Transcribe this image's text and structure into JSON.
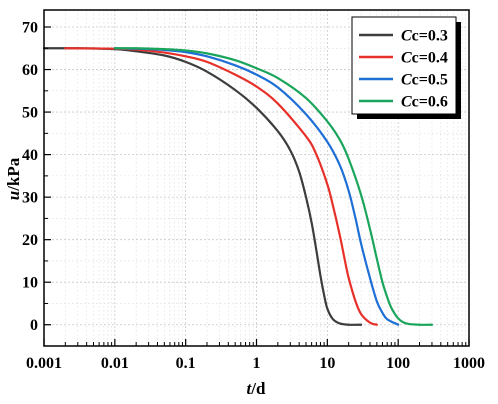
{
  "chart_data": {
    "type": "line",
    "xscale": "log",
    "xlim": [
      0.001,
      1000
    ],
    "ylim": [
      -5,
      74
    ],
    "xlabel": {
      "italic": "t",
      "rest": "/d"
    },
    "ylabel": {
      "italic": "u",
      "rest": "/kPa"
    },
    "xticks": [
      0.001,
      0.01,
      0.1,
      1,
      10,
      100,
      1000
    ],
    "xtick_labels": [
      "0.001",
      "0.01",
      "0.1",
      "1",
      "10",
      "100",
      "1000"
    ],
    "yticks": [
      0,
      10,
      20,
      30,
      40,
      50,
      60,
      70
    ],
    "ytick_labels": [
      "0",
      "10",
      "20",
      "30",
      "40",
      "50",
      "60",
      "70"
    ],
    "grid": true,
    "legend_position": "top-right",
    "series": [
      {
        "name": "Cc=0.3",
        "name_italic": "C",
        "name_rest": "c=0.3",
        "color": "#3d3d3d",
        "x": [
          0.001,
          0.003,
          0.01,
          0.02,
          0.05,
          0.1,
          0.2,
          0.5,
          1,
          2,
          3,
          4,
          5,
          6,
          7,
          8,
          9,
          10,
          12,
          15,
          20,
          30
        ],
        "y": [
          65,
          65,
          64.8,
          64.3,
          63.3,
          61.8,
          59.5,
          55.2,
          51,
          45.5,
          41,
          36,
          30,
          24,
          17.5,
          11.5,
          7,
          3.8,
          1.3,
          0.3,
          0,
          0
        ]
      },
      {
        "name": "Cc=0.4",
        "name_italic": "C",
        "name_rest": "c=0.4",
        "color": "#e8302a",
        "x": [
          0.002,
          0.01,
          0.02,
          0.05,
          0.1,
          0.2,
          0.5,
          1,
          2,
          5,
          7,
          10,
          12,
          15,
          18,
          20,
          25,
          30,
          40,
          50
        ],
        "y": [
          65,
          64.9,
          64.7,
          64,
          63.1,
          61.8,
          58.8,
          56,
          52,
          44.3,
          40,
          33,
          28,
          21,
          14.5,
          11,
          5.5,
          2.5,
          0.5,
          0
        ]
      },
      {
        "name": "Cc=0.5",
        "name_italic": "C",
        "name_rest": "c=0.5",
        "color": "#1e6fd6",
        "x": [
          0.01,
          0.02,
          0.05,
          0.1,
          0.2,
          0.5,
          1,
          2,
          5,
          10,
          15,
          20,
          25,
          30,
          40,
          50,
          60,
          70,
          100
        ],
        "y": [
          65,
          64.9,
          64.6,
          64.1,
          63.1,
          61,
          58.8,
          55.8,
          49.5,
          43,
          37.5,
          31.5,
          25,
          19,
          11,
          5.5,
          2.8,
          1.3,
          0
        ]
      },
      {
        "name": "Cc=0.6",
        "name_italic": "C",
        "name_rest": "c=0.6",
        "color": "#1aa55c",
        "x": [
          0.01,
          0.02,
          0.05,
          0.1,
          0.2,
          0.5,
          1,
          2,
          5,
          10,
          15,
          20,
          30,
          40,
          50,
          60,
          70,
          80,
          100,
          130,
          200,
          300
        ],
        "y": [
          65,
          65,
          64.8,
          64.5,
          63.8,
          62.2,
          60.3,
          58,
          53.3,
          47.8,
          43.5,
          39,
          30.5,
          22.5,
          15.5,
          10,
          6.5,
          4,
          1.5,
          0.3,
          0,
          0
        ]
      }
    ]
  }
}
